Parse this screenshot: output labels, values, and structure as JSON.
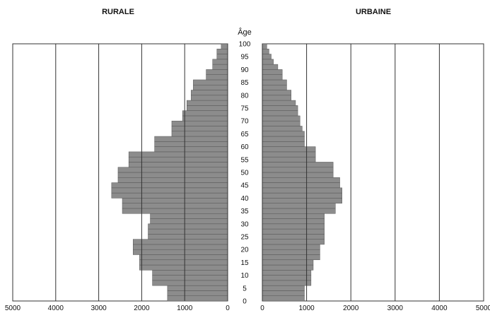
{
  "colors": {
    "bar_fill": "#8c8c8c",
    "grid": "#333333",
    "background": "#ffffff",
    "text": "#111111"
  },
  "chart_data": [
    {
      "type": "bar",
      "orientation": "horizontal",
      "title": "RURALE",
      "ylabel": "Âge",
      "xlim": [
        0,
        5000
      ],
      "x_reversed": true,
      "x_ticks": [
        "5000",
        "4000",
        "3000",
        "2000",
        "1000",
        "0"
      ],
      "y_ticks": [
        "100",
        "95",
        "90",
        "85",
        "80",
        "75",
        "70",
        "65",
        "60",
        "55",
        "50",
        "45",
        "40",
        "35",
        "30",
        "25",
        "20",
        "15",
        "10",
        "5",
        "0"
      ],
      "categories": [
        "0-2",
        "2-4",
        "4-6",
        "6-8",
        "8-10",
        "10-12",
        "12-14",
        "14-16",
        "16-18",
        "18-20",
        "20-22",
        "22-24",
        "24-26",
        "26-28",
        "28-30",
        "30-32",
        "32-34",
        "34-36",
        "36-38",
        "38-40",
        "40-42",
        "42-44",
        "44-46",
        "46-48",
        "48-50",
        "50-52",
        "52-54",
        "54-56",
        "56-58",
        "58-60",
        "60-62",
        "62-64",
        "64-66",
        "66-68",
        "68-70",
        "70-72",
        "72-74",
        "74-76",
        "76-78",
        "78-80",
        "80-82",
        "82-84",
        "84-86",
        "86-88",
        "88-90",
        "90-92",
        "92-94",
        "94-96",
        "96-98",
        "98-100"
      ],
      "values": [
        1400,
        1400,
        1400,
        1750,
        1750,
        1750,
        2050,
        2050,
        2050,
        2200,
        2200,
        2200,
        1850,
        1850,
        1850,
        1800,
        1800,
        2450,
        2450,
        2450,
        2700,
        2700,
        2700,
        2550,
        2550,
        2550,
        2300,
        2300,
        2300,
        1700,
        1700,
        1700,
        1300,
        1300,
        1300,
        1050,
        1050,
        950,
        950,
        850,
        850,
        800,
        800,
        500,
        500,
        350,
        350,
        250,
        250,
        150
      ]
    },
    {
      "type": "bar",
      "orientation": "horizontal",
      "title": "URBAINE",
      "ylabel": "Âge",
      "xlim": [
        0,
        5000
      ],
      "x_ticks": [
        "0",
        "1000",
        "2000",
        "3000",
        "4000",
        "5000"
      ],
      "y_ticks": [
        "100",
        "95",
        "90",
        "85",
        "80",
        "75",
        "70",
        "65",
        "60",
        "55",
        "50",
        "45",
        "40",
        "35",
        "30",
        "25",
        "20",
        "15",
        "10",
        "5",
        "0"
      ],
      "categories": [
        "0-2",
        "2-4",
        "4-6",
        "6-8",
        "8-10",
        "10-12",
        "12-14",
        "14-16",
        "16-18",
        "18-20",
        "20-22",
        "22-24",
        "24-26",
        "26-28",
        "28-30",
        "30-32",
        "32-34",
        "34-36",
        "36-38",
        "38-40",
        "40-42",
        "42-44",
        "44-46",
        "46-48",
        "48-50",
        "50-52",
        "52-54",
        "54-56",
        "56-58",
        "58-60",
        "60-62",
        "62-64",
        "64-66",
        "66-68",
        "68-70",
        "70-72",
        "72-74",
        "74-76",
        "76-78",
        "78-80",
        "80-82",
        "82-84",
        "84-86",
        "86-88",
        "88-90",
        "90-92",
        "92-94",
        "94-96",
        "96-98",
        "98-100"
      ],
      "values": [
        950,
        950,
        950,
        1100,
        1100,
        1100,
        1150,
        1150,
        1300,
        1300,
        1300,
        1400,
        1400,
        1400,
        1400,
        1400,
        1400,
        1650,
        1650,
        1800,
        1800,
        1800,
        1750,
        1750,
        1600,
        1600,
        1600,
        1200,
        1200,
        1200,
        950,
        950,
        950,
        900,
        850,
        850,
        800,
        800,
        750,
        650,
        650,
        550,
        550,
        450,
        450,
        350,
        250,
        200,
        150,
        100
      ]
    }
  ]
}
